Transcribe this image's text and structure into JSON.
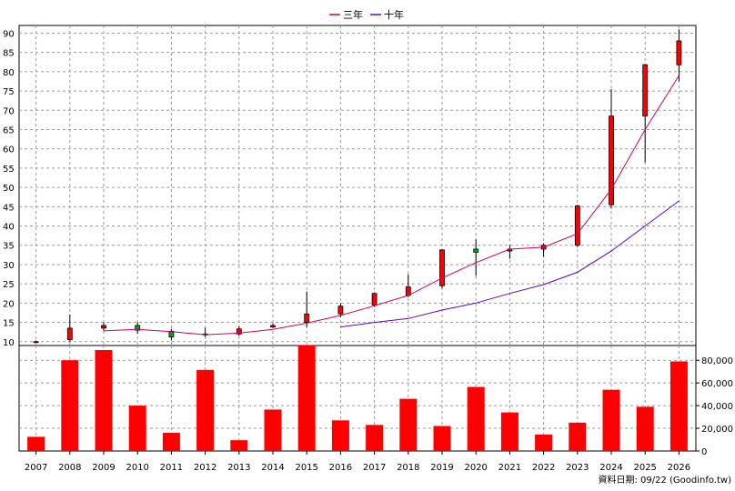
{
  "legend": [
    {
      "label": "三年",
      "color": "#cc0066"
    },
    {
      "label": "十年",
      "color": "#6600cc"
    }
  ],
  "source_text": "資料日期: 09/22 (Goodinfo.tw)",
  "colors": {
    "up": "#ff0000",
    "down": "#00aa00",
    "volume": "#ff0000",
    "grid": "#999999"
  },
  "chart_data": [
    {
      "type": "candlestick",
      "title": "",
      "categories": [
        "2007",
        "2008",
        "2009",
        "2010",
        "2011",
        "2012",
        "2013",
        "2014",
        "2015",
        "2016",
        "2017",
        "2018",
        "2019",
        "2020",
        "2021",
        "2022",
        "2023",
        "2024",
        "2025",
        "2026"
      ],
      "ylim": [
        9,
        92
      ],
      "y_ticks": [
        10,
        15,
        20,
        25,
        30,
        35,
        40,
        45,
        50,
        55,
        60,
        65,
        70,
        75,
        80,
        85,
        90
      ],
      "grid": true,
      "ohlc": [
        {
          "x": "2007",
          "open": 10,
          "high": 10.3,
          "low": 9.8,
          "close": 10
        },
        {
          "x": "2008",
          "open": 10.5,
          "high": 17,
          "low": 10,
          "close": 13.5
        },
        {
          "x": "2009",
          "open": 13.5,
          "high": 15,
          "low": 12.8,
          "close": 14.2
        },
        {
          "x": "2010",
          "open": 14.2,
          "high": 15,
          "low": 12,
          "close": 13
        },
        {
          "x": "2011",
          "open": 12.7,
          "high": 13.3,
          "low": 10.3,
          "close": 11.2
        },
        {
          "x": "2012",
          "open": 11.8,
          "high": 13.6,
          "low": 11.2,
          "close": 12
        },
        {
          "x": "2013",
          "open": 12,
          "high": 14,
          "low": 11.5,
          "close": 13.3
        },
        {
          "x": "2014",
          "open": 13.8,
          "high": 14.8,
          "low": 13.5,
          "close": 14.2
        },
        {
          "x": "2015",
          "open": 15,
          "high": 23,
          "low": 13.8,
          "close": 17.2
        },
        {
          "x": "2016",
          "open": 17.2,
          "high": 20,
          "low": 16.3,
          "close": 19.2
        },
        {
          "x": "2017",
          "open": 19.5,
          "high": 22.8,
          "low": 19,
          "close": 22.5
        },
        {
          "x": "2018",
          "open": 22,
          "high": 27.5,
          "low": 21.5,
          "close": 24.2
        },
        {
          "x": "2019",
          "open": 24.5,
          "high": 34,
          "low": 23.8,
          "close": 33.8
        },
        {
          "x": "2020",
          "open": 34,
          "high": 36.5,
          "low": 27,
          "close": 33.2
        },
        {
          "x": "2021",
          "open": 33.5,
          "high": 35,
          "low": 31.5,
          "close": 34
        },
        {
          "x": "2022",
          "open": 34,
          "high": 35.5,
          "low": 32,
          "close": 35
        },
        {
          "x": "2023",
          "open": 35,
          "high": 45.5,
          "low": 34.5,
          "close": 45.2
        },
        {
          "x": "2024",
          "open": 45.5,
          "high": 75.5,
          "low": 44.5,
          "close": 68.5
        },
        {
          "x": "2025",
          "open": 68.5,
          "high": 82,
          "low": 56.5,
          "close": 81.8
        },
        {
          "x": "2026",
          "open": 81.8,
          "high": 91,
          "low": 77.5,
          "close": 88
        }
      ],
      "series": [
        {
          "name": "三年",
          "type": "line",
          "color": "#cc0066",
          "x": [
            "2009",
            "2010",
            "2011",
            "2012",
            "2013",
            "2014",
            "2015",
            "2016",
            "2017",
            "2018",
            "2019",
            "2020",
            "2021",
            "2022",
            "2023",
            "2024",
            "2025",
            "2026"
          ],
          "values": [
            12.8,
            13.2,
            12.6,
            11.8,
            12.2,
            13.2,
            14.8,
            16.8,
            19.3,
            22,
            26.5,
            30.5,
            34,
            34.5,
            38,
            49.5,
            65,
            79
          ]
        },
        {
          "name": "十年",
          "type": "line",
          "color": "#6600cc",
          "x": [
            "2016",
            "2017",
            "2018",
            "2019",
            "2020",
            "2021",
            "2022",
            "2023",
            "2024",
            "2025",
            "2026"
          ],
          "values": [
            13.8,
            15,
            16,
            18.2,
            20,
            22.5,
            24.8,
            28,
            33.5,
            40,
            46.5
          ]
        }
      ]
    },
    {
      "type": "bar",
      "categories": [
        "2007",
        "2008",
        "2009",
        "2010",
        "2011",
        "2012",
        "2013",
        "2014",
        "2015",
        "2016",
        "2017",
        "2018",
        "2019",
        "2020",
        "2021",
        "2022",
        "2023",
        "2024",
        "2025",
        "2026"
      ],
      "values": [
        12500,
        80000,
        89000,
        40000,
        16000,
        71500,
        9500,
        36500,
        93500,
        27000,
        23000,
        46000,
        22000,
        56500,
        34000,
        14500,
        25000,
        54000,
        39000,
        79000
      ],
      "ylim": [
        0,
        93000
      ],
      "y_ticks": [
        0,
        20000,
        40000,
        60000,
        80000
      ],
      "y_tick_labels": [
        "0",
        "20,000",
        "40,000",
        "60,000",
        "80,000"
      ],
      "grid": true
    }
  ]
}
